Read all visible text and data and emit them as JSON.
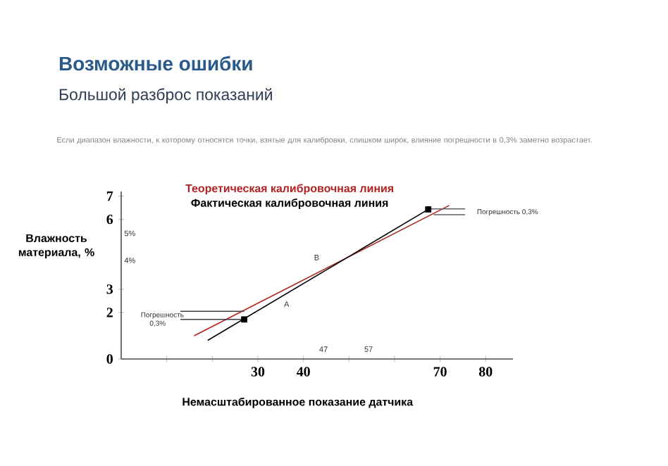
{
  "chart_data": {
    "type": "line",
    "title": "Возможные ошибки",
    "subtitle": "Большой разброс показаний",
    "xlabel": "Немасштабированное показание датчика",
    "xlim": [
      0,
      86
    ],
    "ylim": [
      0,
      7.2
    ],
    "xticks": [
      {
        "value": 10,
        "label": null
      },
      {
        "value": 20,
        "label": null
      },
      30,
      40,
      {
        "value": 50,
        "label": null
      },
      {
        "value": 60,
        "label": null
      },
      70,
      80
    ],
    "yticks": [
      0,
      2,
      3,
      6,
      7
    ],
    "legend": "top",
    "series": [
      {
        "name": "Теоретическая калибровочная линия",
        "color": "#b22222",
        "x": [
          16,
          72
        ],
        "values": [
          1.0,
          6.6
        ]
      },
      {
        "name": "Фактическая калибровочная линия",
        "color": "#000000",
        "x": [
          19,
          68
        ],
        "values": [
          0.8,
          6.5
        ]
      },
      {
        "type": "scatter",
        "marker": "square",
        "color": "#000000",
        "x": [
          27,
          67.4
        ],
        "values": [
          1.7,
          6.43
        ]
      },
      {
        "color": "#404040",
        "x": [
          13,
          27
        ],
        "values": [
          2.05,
          2.05
        ]
      },
      {
        "color": "#404040",
        "x": [
          13,
          27
        ],
        "values": [
          1.7,
          1.7
        ]
      },
      {
        "color": "#606060",
        "x": [
          68,
          75.5
        ],
        "values": [
          6.45,
          6.45
        ]
      },
      {
        "color": "#606060",
        "x": [
          68.6,
          75.5
        ],
        "values": [
          6.2,
          6.2
        ]
      }
    ],
    "annotations": [
      "Если диапазон влажности, к которому относятся точки, взятые для калибровки, слишком широк, влияние погрешности в 0,3% заметно возрастает.",
      "Влажность материала, %",
      "Погрешность 0,3%",
      "Погрешность 0,3%",
      "A",
      "B",
      "5%",
      "4%",
      "47",
      "57"
    ]
  }
}
